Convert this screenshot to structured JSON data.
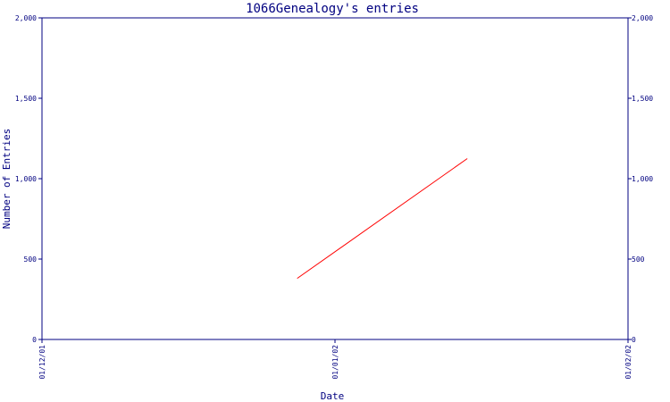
{
  "chart_data": {
    "type": "line",
    "title": "1066Genealogy's entries",
    "xlabel": "Date",
    "ylabel": "Number of Entries",
    "x_ticks": [
      "01/12/01",
      "01/01/02",
      "01/02/02"
    ],
    "y_ticks": [
      "0",
      "500",
      "1,000",
      "1,500",
      "2,000"
    ],
    "ylim": [
      0,
      2000
    ],
    "xlim": [
      "2001-12-01",
      "2002-02-01"
    ],
    "grid": false,
    "right_axis": true,
    "series": [
      {
        "color": "#ff0000",
        "points": [
          {
            "x": "2001-12-28",
            "y": 380
          },
          {
            "x": "2002-01-15",
            "y": 1125
          }
        ]
      }
    ],
    "colors": {
      "axis": "#000080",
      "text": "#000080",
      "line": "#ff0000"
    }
  }
}
